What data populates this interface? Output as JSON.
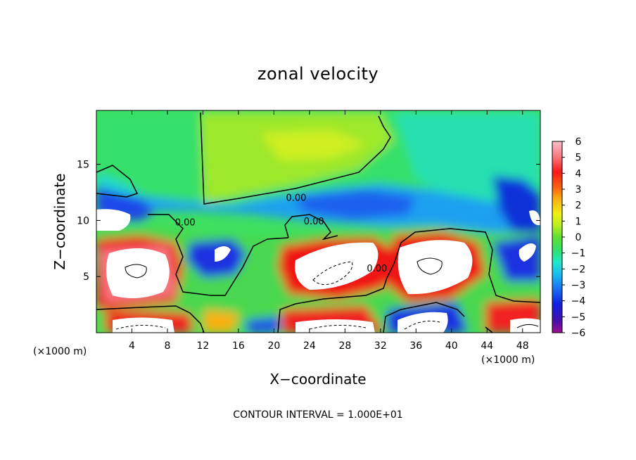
{
  "chart_data": {
    "type": "heatmap",
    "title": "zonal velocity",
    "xlabel": "X−coordinate",
    "ylabel": "Z−coordinate",
    "x_unit_left": "(×1000 m)",
    "x_unit_right": "(×1000 m)",
    "footer": "CONTOUR INTERVAL = 1.000E+01",
    "xlim": [
      0,
      50
    ],
    "ylim": [
      0,
      19.8
    ],
    "x_ticks": [
      4,
      8,
      12,
      16,
      20,
      24,
      28,
      32,
      36,
      40,
      44,
      48
    ],
    "x_tick_labels": [
      "4",
      "8",
      "12",
      "16",
      "20",
      "24",
      "28",
      "32",
      "36",
      "40",
      "44",
      "48"
    ],
    "y_ticks": [
      5,
      10,
      15
    ],
    "y_tick_labels": [
      "5",
      "10",
      "15"
    ],
    "colorbar": {
      "range": [
        -6,
        6
      ],
      "tick_labels": [
        "6",
        "5",
        "4",
        "3",
        "2",
        "1",
        "0",
        "−1",
        "−2",
        "−3",
        "−4",
        "−5",
        "−6"
      ],
      "colors": [
        "#9a0e8e",
        "#4010b0",
        "#1020e0",
        "#1a70f0",
        "#18b8f0",
        "#20e8c8",
        "#30e070",
        "#60e030",
        "#b8f020",
        "#f0f010",
        "#f8b010",
        "#f86010",
        "#f81818",
        "#f87880",
        "#f8c0c8"
      ],
      "overflow_color": "#ffffff"
    },
    "contour_labels": [
      {
        "text": "0.00",
        "x": 22.5,
        "y": 12.0
      },
      {
        "text": "0.00",
        "x": 10.0,
        "y": 9.8
      },
      {
        "text": "0.00",
        "x": 24.5,
        "y": 9.9
      },
      {
        "text": "0.00",
        "x": 31.6,
        "y": 5.7
      }
    ]
  }
}
